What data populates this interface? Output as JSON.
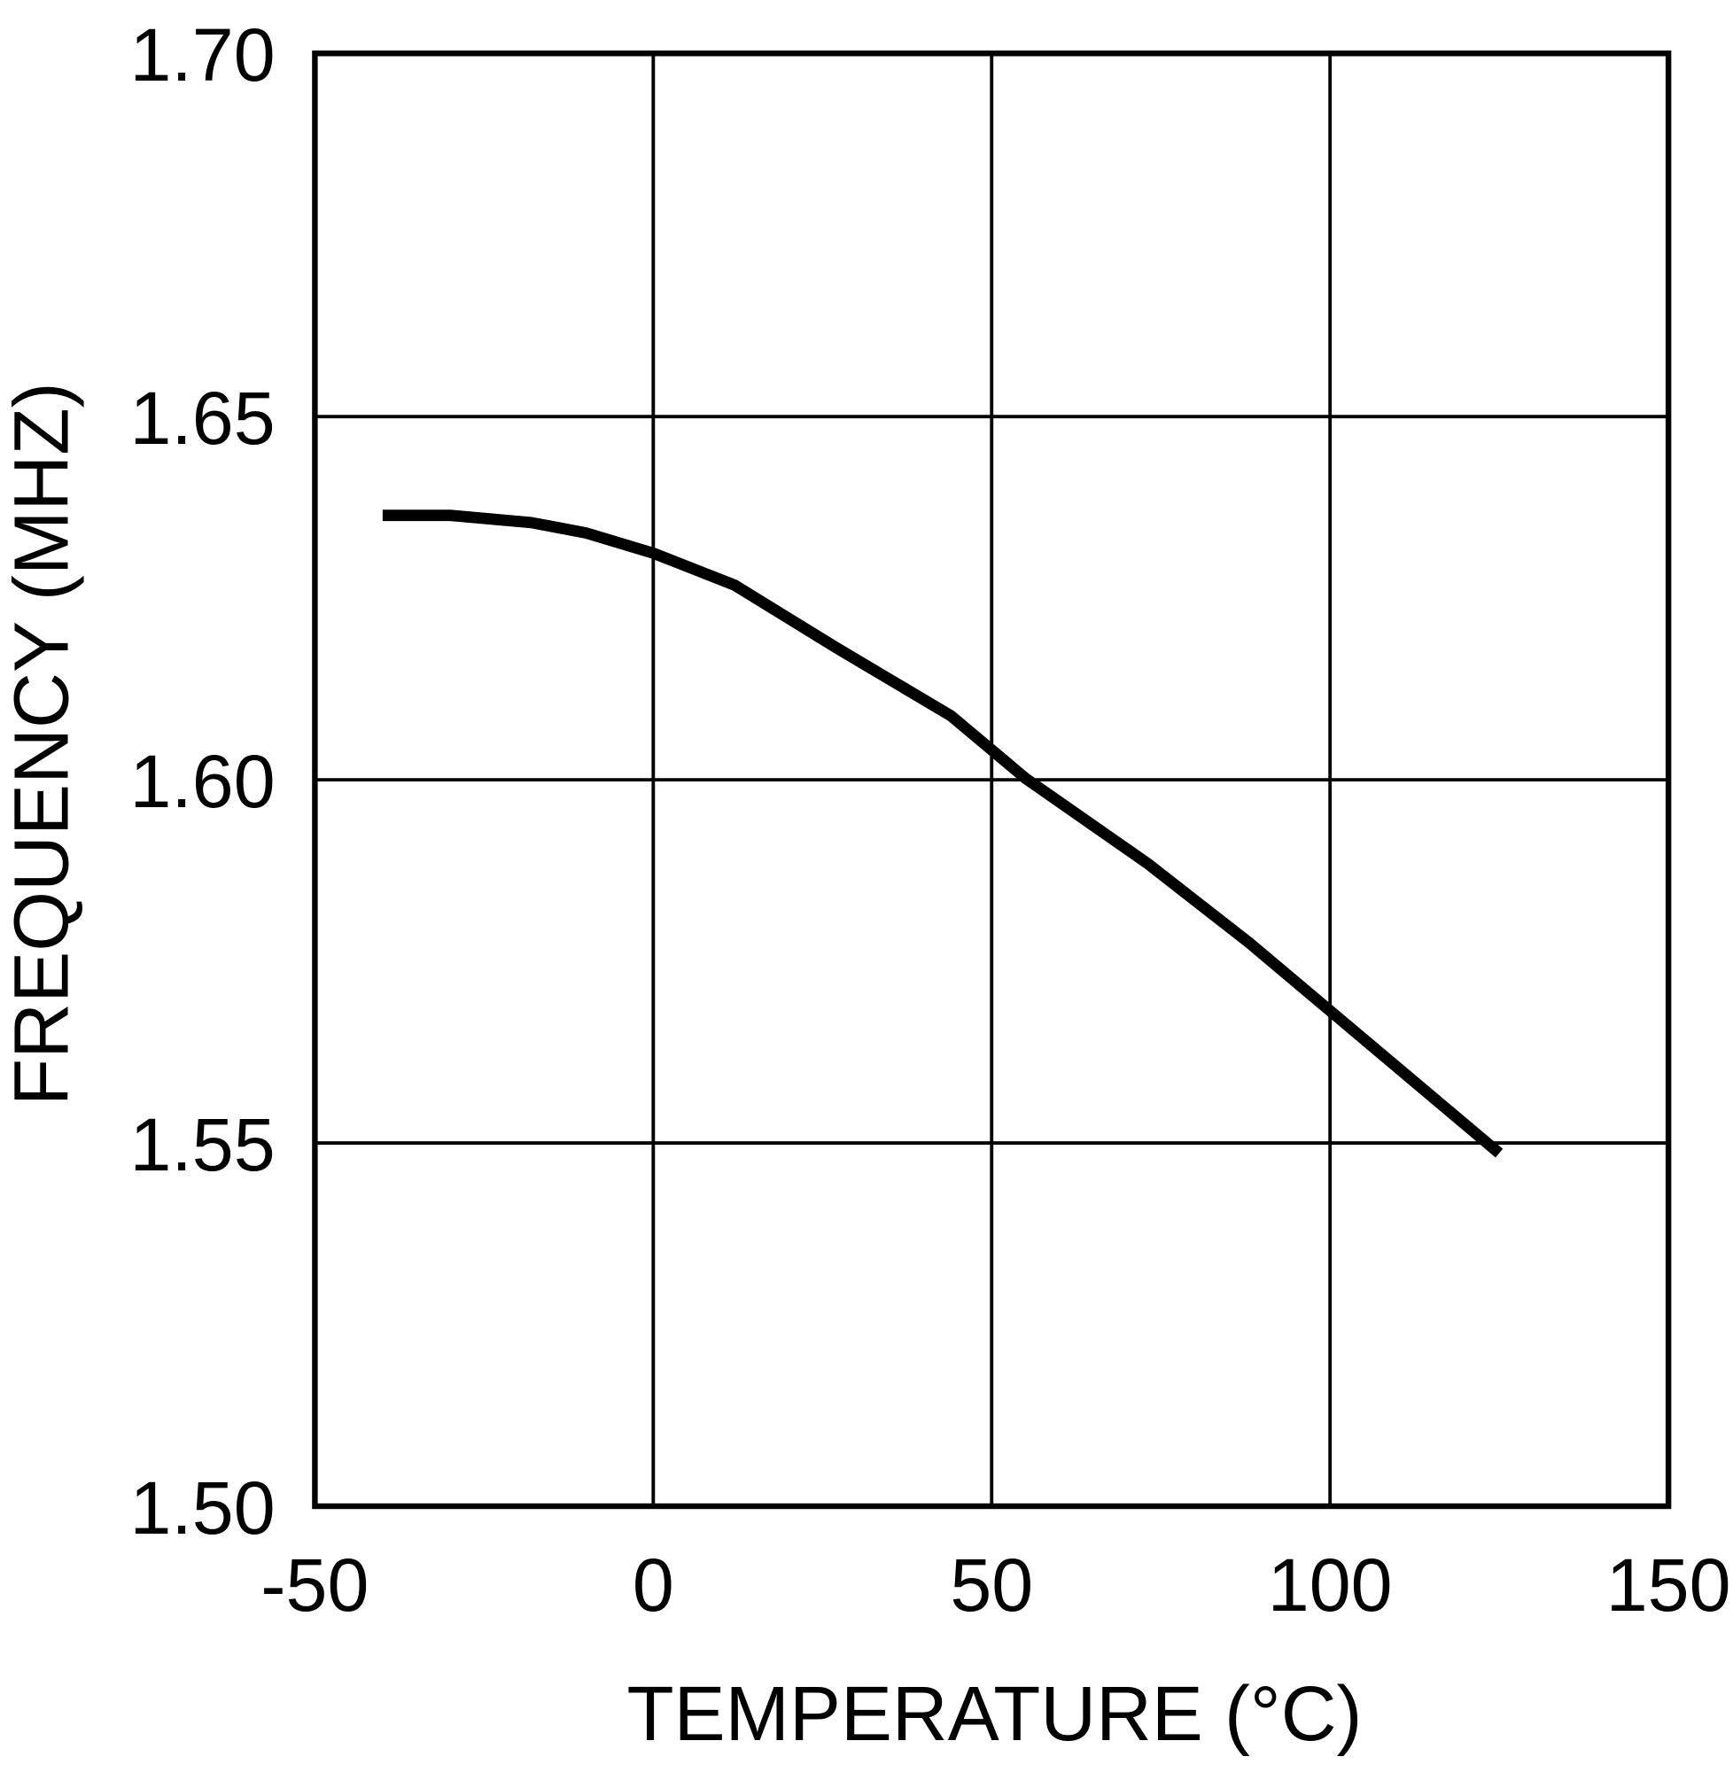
{
  "chart_data": {
    "type": "line",
    "title": "",
    "xlabel": "TEMPERATURE (°C)",
    "ylabel": "FREQUENCY (MHZ)",
    "xlim": [
      -50,
      150
    ],
    "ylim": [
      1.5,
      1.7
    ],
    "xticks": [
      -50,
      0,
      50,
      100,
      150
    ],
    "xtick_labels": [
      "-50",
      "0",
      "50",
      "100",
      "150"
    ],
    "yticks": [
      1.5,
      1.55,
      1.6,
      1.65,
      1.7
    ],
    "ytick_labels": [
      "1.50",
      "1.55",
      "1.60",
      "1.65",
      "1.70"
    ],
    "grid": true,
    "line_color": "#000000",
    "series": [
      {
        "x": [
          -40,
          -30,
          -18,
          -10,
          0,
          12,
          27,
          44,
          55,
          73,
          88,
          100,
          125
        ],
        "y": [
          1.6364,
          1.6364,
          1.6354,
          1.634,
          1.6312,
          1.6268,
          1.6182,
          1.6088,
          1.6002,
          1.5885,
          1.5776,
          1.5682,
          1.5486
        ]
      }
    ]
  }
}
